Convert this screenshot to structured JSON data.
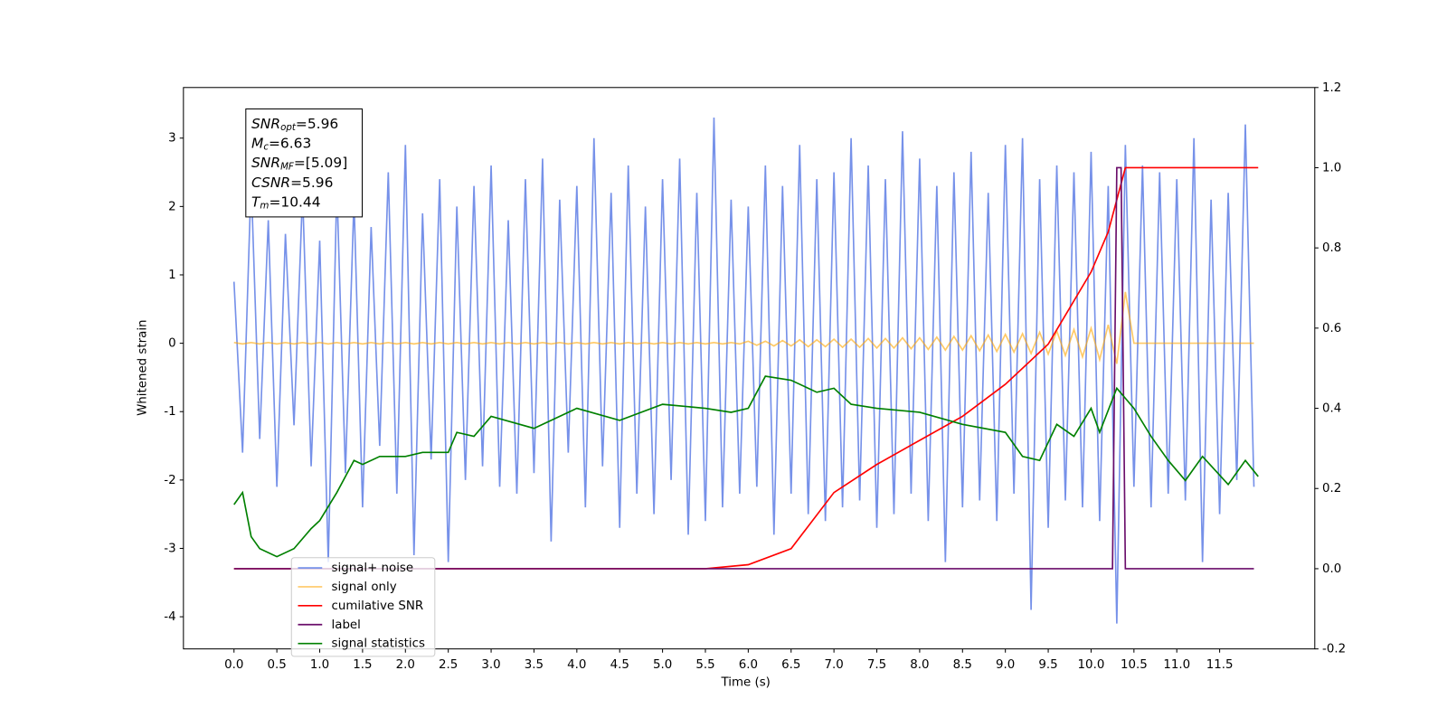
{
  "chart_data": {
    "type": "line",
    "xlabel": "Time (s)",
    "ylabel": "Whitened strain",
    "xlim": [
      -0.59,
      12.61
    ],
    "ylim": [
      -4.47,
      3.74
    ],
    "y2lim": [
      -0.2,
      1.2
    ],
    "xticks": [
      {
        "value": 0,
        "label": "0.0"
      },
      0.5,
      {
        "value": 1,
        "label": "1.0"
      },
      1.5,
      {
        "value": 2,
        "label": "2.0"
      },
      2.5,
      {
        "value": 3,
        "label": "3.0"
      },
      3.5,
      {
        "value": 4,
        "label": "4.0"
      },
      4.5,
      {
        "value": 5,
        "label": "5.0"
      },
      5.5,
      {
        "value": 6,
        "label": "6.0"
      },
      6.5,
      {
        "value": 7,
        "label": "7.0"
      },
      7.5,
      {
        "value": 8,
        "label": "8.0"
      },
      8.5,
      {
        "value": 9,
        "label": "9.0"
      },
      9.5,
      {
        "value": 10,
        "label": "10.0"
      },
      10.5,
      {
        "value": 11,
        "label": "11.0"
      },
      11.5
    ],
    "yticks": [
      -4,
      -3,
      -2,
      -1,
      0,
      1,
      2,
      3
    ],
    "y2ticks": [
      -0.2,
      {
        "value": 0,
        "label": "0.0"
      },
      0.2,
      0.4,
      0.6,
      0.8,
      {
        "value": 1,
        "label": "1.0"
      },
      1.2
    ],
    "legend": "lower left",
    "annotation": [
      {
        "base": "SNR",
        "sub": "opt",
        "rest": "=5.96"
      },
      {
        "base": "M",
        "sub": "c",
        "rest": "=6.63"
      },
      {
        "base": "SNR",
        "sub": "MF",
        "rest": "=[5.09]"
      },
      {
        "base": "CSNR",
        "sub": null,
        "rest": "=5.96"
      },
      {
        "base": "T",
        "sub": "m",
        "rest": "=10.44"
      }
    ],
    "series": [
      {
        "name": "signal+ noise",
        "color": "#6f8be8",
        "axis": "y",
        "x": [
          0,
          0.1,
          0.2,
          0.3,
          0.4,
          0.5,
          0.6,
          0.7,
          0.8,
          0.9,
          1,
          1.1,
          1.2,
          1.3,
          1.4,
          1.5,
          1.6,
          1.7,
          1.8,
          1.9,
          2,
          2.1,
          2.2,
          2.3,
          2.4,
          2.5,
          2.6,
          2.7,
          2.8,
          2.9,
          3,
          3.1,
          3.2,
          3.3,
          3.4,
          3.5,
          3.6,
          3.7,
          3.8,
          3.9,
          4,
          4.1,
          4.2,
          4.3,
          4.4,
          4.5,
          4.6,
          4.7,
          4.8,
          4.9,
          5,
          5.1,
          5.2,
          5.3,
          5.4,
          5.5,
          5.6,
          5.7,
          5.8,
          5.9,
          6,
          6.1,
          6.2,
          6.3,
          6.4,
          6.5,
          6.6,
          6.7,
          6.8,
          6.9,
          7,
          7.1,
          7.2,
          7.3,
          7.4,
          7.5,
          7.6,
          7.7,
          7.8,
          7.9,
          8,
          8.1,
          8.2,
          8.3,
          8.4,
          8.5,
          8.6,
          8.7,
          8.8,
          8.9,
          9,
          9.1,
          9.2,
          9.3,
          9.4,
          9.5,
          9.6,
          9.7,
          9.8,
          9.9,
          10,
          10.1,
          10.2,
          10.3,
          10.4,
          10.5,
          10.6,
          10.7,
          10.8,
          10.9,
          11,
          11.1,
          11.2,
          11.3,
          11.4,
          11.5,
          11.6,
          11.7,
          11.8,
          11.9
        ],
        "values": [
          0.9,
          -1.6,
          2.4,
          -1.4,
          1.8,
          -2.1,
          1.6,
          -1.2,
          2.2,
          -1.8,
          1.5,
          -3.2,
          2.3,
          -1.9,
          2.1,
          -2.4,
          1.7,
          -1.5,
          2.5,
          -2.2,
          2.9,
          -3.1,
          1.9,
          -1.7,
          2.4,
          -3.2,
          2.0,
          -2.0,
          2.3,
          -1.8,
          2.6,
          -2.1,
          1.8,
          -2.2,
          2.4,
          -1.9,
          2.7,
          -2.9,
          2.1,
          -1.6,
          2.3,
          -2.4,
          3.0,
          -1.8,
          2.2,
          -2.7,
          2.6,
          -2.2,
          2.0,
          -2.5,
          2.4,
          -2.0,
          2.7,
          -2.8,
          2.2,
          -2.6,
          3.3,
          -2.4,
          2.1,
          -2.2,
          2.0,
          -2.1,
          2.6,
          -2.8,
          2.3,
          -2.2,
          2.9,
          -2.5,
          2.4,
          -2.6,
          2.5,
          -2.4,
          3.0,
          -2.3,
          2.6,
          -2.7,
          2.4,
          -2.5,
          3.1,
          -2.2,
          2.7,
          -2.6,
          2.3,
          -3.2,
          2.5,
          -2.4,
          2.8,
          -2.3,
          2.2,
          -2.6,
          2.9,
          -2.2,
          3.0,
          -3.9,
          2.4,
          -2.7,
          2.6,
          -2.3,
          2.5,
          -2.4,
          2.8,
          -2.6,
          2.3,
          -4.1,
          2.9,
          -2.1,
          2.6,
          -2.4,
          2.5,
          -2.2,
          2.4,
          -2.3,
          3.0,
          -3.2,
          2.1,
          -2.5,
          2.2,
          -2.0,
          3.2,
          -2.1
        ]
      },
      {
        "name": "signal only",
        "color": "#ffa500",
        "axis": "y",
        "x": [
          0,
          0.1,
          0.2,
          0.3,
          0.4,
          0.5,
          0.6,
          0.7,
          0.8,
          0.9,
          1,
          1.1,
          1.2,
          1.3,
          1.4,
          1.5,
          1.6,
          1.7,
          1.8,
          1.9,
          2,
          2.1,
          2.2,
          2.3,
          2.4,
          2.5,
          2.6,
          2.7,
          2.8,
          2.9,
          3,
          3.1,
          3.2,
          3.3,
          3.4,
          3.5,
          3.6,
          3.7,
          3.8,
          3.9,
          4,
          4.1,
          4.2,
          4.3,
          4.4,
          4.5,
          4.6,
          4.7,
          4.8,
          4.9,
          5,
          5.1,
          5.2,
          5.3,
          5.4,
          5.5,
          5.6,
          5.7,
          5.8,
          5.9,
          6,
          6.1,
          6.2,
          6.3,
          6.4,
          6.5,
          6.6,
          6.7,
          6.8,
          6.9,
          7,
          7.1,
          7.2,
          7.3,
          7.4,
          7.5,
          7.6,
          7.7,
          7.8,
          7.9,
          8,
          8.1,
          8.2,
          8.3,
          8.4,
          8.5,
          8.6,
          8.7,
          8.8,
          8.9,
          9,
          9.1,
          9.2,
          9.3,
          9.4,
          9.5,
          9.6,
          9.7,
          9.8,
          9.9,
          10,
          10.1,
          10.2,
          10.3,
          10.4,
          10.5,
          10.6,
          10.7,
          10.8,
          10.9,
          11,
          11.1,
          11.2,
          11.3,
          11.4,
          11.5,
          11.6,
          11.7,
          11.8,
          11.9
        ],
        "values": [
          0.01,
          -0.01,
          0.01,
          -0.01,
          0.01,
          -0.01,
          0.01,
          -0.01,
          0.01,
          -0.01,
          0.01,
          -0.01,
          0.01,
          -0.01,
          0.01,
          -0.01,
          0.01,
          -0.01,
          0.01,
          -0.01,
          0.01,
          -0.01,
          0.01,
          -0.01,
          0.01,
          -0.01,
          0.01,
          -0.01,
          0.01,
          -0.01,
          0.01,
          -0.01,
          0.01,
          -0.01,
          0.01,
          -0.01,
          0.01,
          -0.01,
          0.01,
          -0.01,
          0.01,
          -0.01,
          0.01,
          -0.01,
          0.01,
          -0.01,
          0.01,
          -0.01,
          0.01,
          -0.01,
          0.01,
          -0.01,
          0.01,
          -0.01,
          0.01,
          -0.01,
          0.01,
          -0.01,
          0.01,
          -0.01,
          0.03,
          -0.03,
          0.03,
          -0.04,
          0.04,
          -0.04,
          0.05,
          -0.05,
          0.05,
          -0.05,
          0.06,
          -0.06,
          0.06,
          -0.06,
          0.07,
          -0.07,
          0.07,
          -0.07,
          0.08,
          -0.08,
          0.08,
          -0.09,
          0.09,
          -0.1,
          0.1,
          -0.1,
          0.11,
          -0.11,
          0.12,
          -0.12,
          0.13,
          -0.13,
          0.14,
          -0.15,
          0.16,
          -0.16,
          0.18,
          -0.18,
          0.2,
          -0.2,
          0.22,
          -0.24,
          0.27,
          -0.3,
          0.75,
          0,
          0,
          0,
          0,
          0,
          0,
          0,
          0,
          0,
          0,
          0,
          0,
          0,
          0,
          0
        ]
      },
      {
        "name": "cumilative SNR",
        "color": "#ff0000",
        "axis": "y2",
        "x": [
          0,
          5.5,
          6,
          6.5,
          7,
          7.5,
          8,
          8.5,
          9,
          9.5,
          10,
          10.2,
          10.4,
          11.95
        ],
        "values": [
          0,
          0,
          0.01,
          0.05,
          0.19,
          0.26,
          0.32,
          0.38,
          0.46,
          0.56,
          0.74,
          0.84,
          1,
          1
        ]
      },
      {
        "name": "label",
        "color": "#6a0d6a",
        "axis": "y2",
        "x": [
          0,
          10.25,
          10.3,
          10.35,
          10.4,
          11.9
        ],
        "values": [
          0,
          0,
          1,
          1,
          0,
          0
        ]
      },
      {
        "name": "signal statistics",
        "color": "#008000",
        "axis": "y2",
        "x": [
          0,
          0.1,
          0.2,
          0.3,
          0.5,
          0.7,
          0.9,
          1,
          1.2,
          1.4,
          1.5,
          1.7,
          2,
          2.2,
          2.5,
          2.6,
          2.8,
          3,
          3.5,
          4,
          4.5,
          5,
          5.5,
          5.8,
          6,
          6.2,
          6.5,
          6.8,
          7,
          7.2,
          7.5,
          8,
          8.5,
          9,
          9.2,
          9.4,
          9.6,
          9.8,
          10,
          10.1,
          10.3,
          10.5,
          10.7,
          10.9,
          11.1,
          11.3,
          11.6,
          11.8,
          11.95
        ],
        "values": [
          0.16,
          0.19,
          0.08,
          0.05,
          0.03,
          0.05,
          0.1,
          0.12,
          0.19,
          0.27,
          0.26,
          0.28,
          0.28,
          0.29,
          0.29,
          0.34,
          0.33,
          0.38,
          0.35,
          0.4,
          0.37,
          0.41,
          0.4,
          0.39,
          0.4,
          0.48,
          0.47,
          0.44,
          0.45,
          0.41,
          0.4,
          0.39,
          0.36,
          0.34,
          0.28,
          0.27,
          0.36,
          0.33,
          0.4,
          0.34,
          0.45,
          0.4,
          0.33,
          0.27,
          0.22,
          0.28,
          0.21,
          0.27,
          0.23
        ]
      }
    ]
  }
}
